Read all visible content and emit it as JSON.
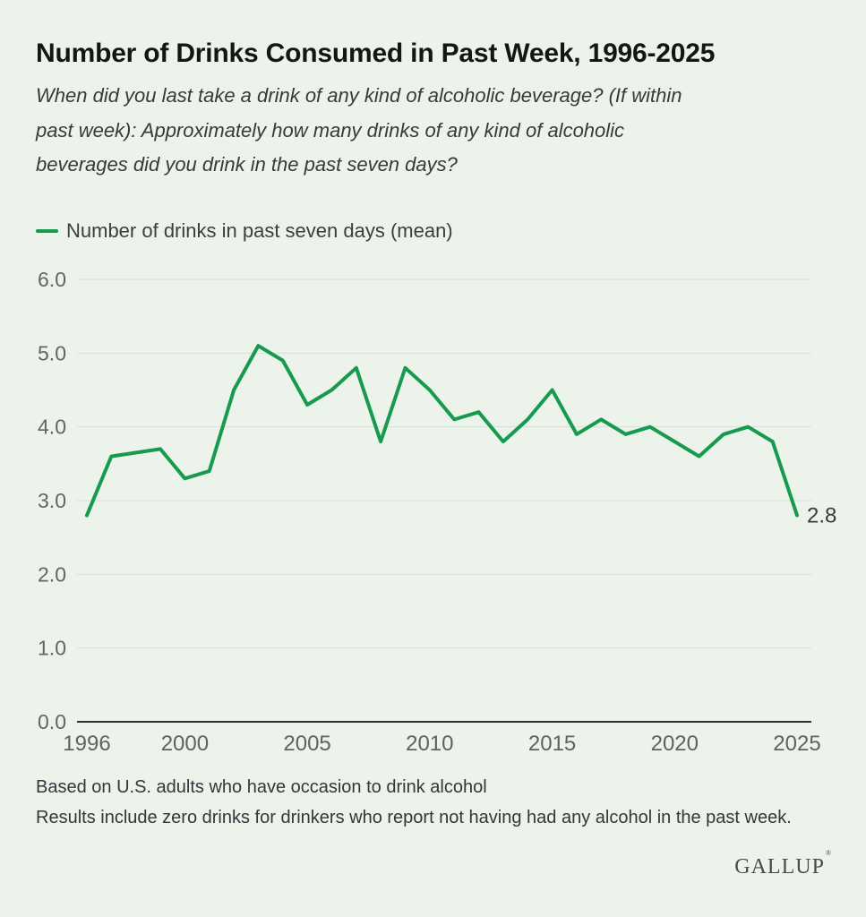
{
  "page": {
    "background": "#ebf3eb"
  },
  "header": {
    "title": "Number of Drinks Consumed in Past Week, 1996-2025",
    "subtitle_lines": [
      "When did you last take a drink of any kind of alcoholic beverage? (If within",
      "past week): Approximately how many drinks of any kind of alcoholic",
      "beverages did you drink in the past seven days?"
    ]
  },
  "legend": {
    "label": "Number of drinks in past seven days (mean)"
  },
  "chart_data": {
    "type": "line",
    "title": "Number of Drinks Consumed in Past Week, 1996-2025",
    "xlabel": "",
    "ylabel": "",
    "xlim": [
      1996,
      2025
    ],
    "ylim": [
      0,
      6
    ],
    "grid": "horizontal",
    "legend_position": "top-left",
    "x_ticks": [
      1996,
      2000,
      2005,
      2010,
      2015,
      2020,
      2025
    ],
    "y_tick_labels": [
      "6.0",
      "5.0",
      "4.0",
      "3.0",
      "2.0",
      "1.0",
      "0.0"
    ],
    "series": [
      {
        "name": "Number of drinks in past seven days (mean)",
        "color": "#169a4e",
        "points": [
          [
            1996,
            2.8
          ],
          [
            1997,
            3.6
          ],
          [
            1999,
            3.7
          ],
          [
            2000,
            3.3
          ],
          [
            2001,
            3.4
          ],
          [
            2002,
            4.5
          ],
          [
            2003,
            5.1
          ],
          [
            2004,
            4.9
          ],
          [
            2005,
            4.3
          ],
          [
            2006,
            4.5
          ],
          [
            2007,
            4.8
          ],
          [
            2008,
            3.8
          ],
          [
            2009,
            4.8
          ],
          [
            2010,
            4.5
          ],
          [
            2011,
            4.1
          ],
          [
            2012,
            4.2
          ],
          [
            2013,
            3.8
          ],
          [
            2014,
            4.1
          ],
          [
            2015,
            4.5
          ],
          [
            2016,
            3.9
          ],
          [
            2017,
            4.1
          ],
          [
            2018,
            3.9
          ],
          [
            2019,
            4.0
          ],
          [
            2020,
            3.8
          ],
          [
            2021,
            3.6
          ],
          [
            2022,
            3.9
          ],
          [
            2023,
            4.0
          ],
          [
            2024,
            3.8
          ],
          [
            2025,
            2.8
          ]
        ]
      }
    ],
    "end_label": "2.8"
  },
  "footnotes": [
    "Based on U.S. adults who have occasion to drink alcohol",
    "Results include zero drinks for drinkers who report not having had any alcohol in the past week."
  ],
  "logo": {
    "text": "GALLUP",
    "mark": "®"
  }
}
